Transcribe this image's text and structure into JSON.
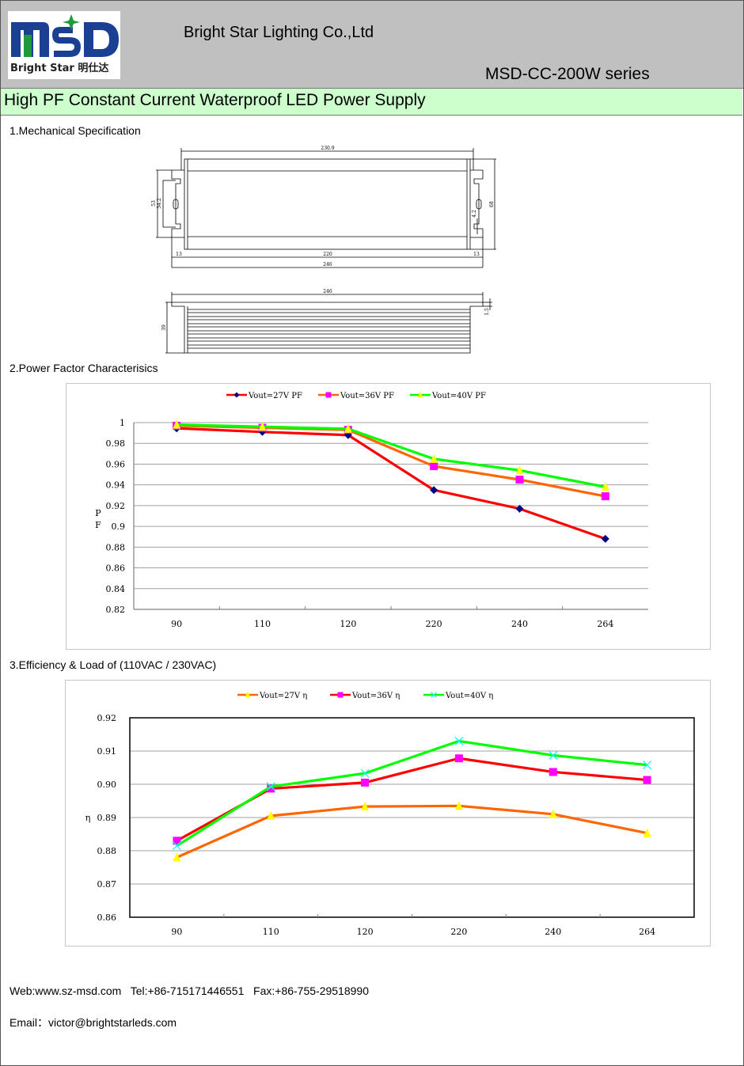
{
  "header": {
    "logo_text": "MSD",
    "logo_subtext": "Bright Star 明仕达",
    "company": "Bright Star Lighting Co.,Ltd",
    "series": "MSD-CC-200W series"
  },
  "title": "High PF Constant Current Waterproof LED Power Supply",
  "sections": {
    "mechanical": "1.Mechanical Specification",
    "pf": "2.Power Factor Characterisics",
    "efficiency": "3.Efficiency & Load of (110VAC / 230VAC)"
  },
  "mechanical": {
    "dims": {
      "overall_top": "230.9",
      "h53": "53",
      "h34_2": "34.2",
      "h68": "68",
      "slot4_2": "4.2",
      "left13": "13",
      "body220": "220",
      "right13": "13",
      "total246": "246",
      "side246": "246",
      "height39": "39",
      "flange1_5": "1.5"
    }
  },
  "chart_data": [
    {
      "type": "line",
      "title": "",
      "xlabel": "",
      "ylabel": "PF",
      "categories": [
        "90",
        "110",
        "120",
        "220",
        "240",
        "264"
      ],
      "ylim": [
        0.82,
        1
      ],
      "yticks": [
        0.82,
        0.84,
        0.86,
        0.88,
        0.9,
        0.92,
        0.94,
        0.96,
        0.98,
        1
      ],
      "ytick_labels": [
        "0.82",
        "0.84",
        "0.86",
        "0.88",
        "0.9",
        "0.92",
        "0.94",
        "0.96",
        "0.98",
        "1"
      ],
      "grid": true,
      "legend": "top",
      "series": [
        {
          "name": "Vout=27V PF",
          "values": [
            0.9945,
            0.991,
            0.988,
            0.935,
            0.917,
            0.888
          ],
          "color": "#ff0000",
          "marker": "diamond",
          "marker_color": "#000080"
        },
        {
          "name": "Vout=36V PF",
          "values": [
            0.997,
            0.995,
            0.993,
            0.958,
            0.945,
            0.929
          ],
          "color": "#ff6600",
          "marker": "square",
          "marker_color": "#ff00ff"
        },
        {
          "name": "Vout=40V PF",
          "values": [
            0.998,
            0.996,
            0.994,
            0.965,
            0.954,
            0.938
          ],
          "color": "#00ff00",
          "marker": "triangle",
          "marker_color": "#ffff00"
        }
      ]
    },
    {
      "type": "line",
      "title": "",
      "xlabel": "",
      "ylabel": "η",
      "categories": [
        "90",
        "110",
        "120",
        "220",
        "240",
        "264"
      ],
      "ylim": [
        0.86,
        0.92
      ],
      "yticks": [
        0.86,
        0.87,
        0.88,
        0.89,
        0.9,
        0.91,
        0.92
      ],
      "ytick_labels": [
        "0.86",
        "0.87",
        "0.88",
        "0.89",
        "0.90",
        "0.91",
        "0.92"
      ],
      "grid": true,
      "legend": "top",
      "series": [
        {
          "name": "Vout=27V  η",
          "values": [
            0.878,
            0.8905,
            0.8933,
            0.8935,
            0.891,
            0.8853
          ],
          "color": "#ff6600",
          "marker": "triangle",
          "marker_color": "#ffff00"
        },
        {
          "name": "Vout=36V  η",
          "values": [
            0.883,
            0.8987,
            0.9005,
            0.9078,
            0.9037,
            0.9013
          ],
          "color": "#ff0000",
          "marker": "square",
          "marker_color": "#ff00ff"
        },
        {
          "name": "Vout=40V  η",
          "values": [
            0.8815,
            0.8993,
            0.9033,
            0.913,
            0.9087,
            0.9058
          ],
          "color": "#00ff00",
          "marker": "x",
          "marker_color": "#00ffff"
        }
      ]
    }
  ],
  "footer": {
    "contact": "Web:www.sz-msd.com   Tel:+86-715171446551   Fax:+86-755-29518990",
    "email": "Email：victor@brightstarleds.com"
  },
  "colors": {
    "header_bg": "#c0c0c0",
    "title_bg": "#ccffcc",
    "logo_blue": "#1a3f93",
    "logo_green": "#1f9a3a"
  }
}
